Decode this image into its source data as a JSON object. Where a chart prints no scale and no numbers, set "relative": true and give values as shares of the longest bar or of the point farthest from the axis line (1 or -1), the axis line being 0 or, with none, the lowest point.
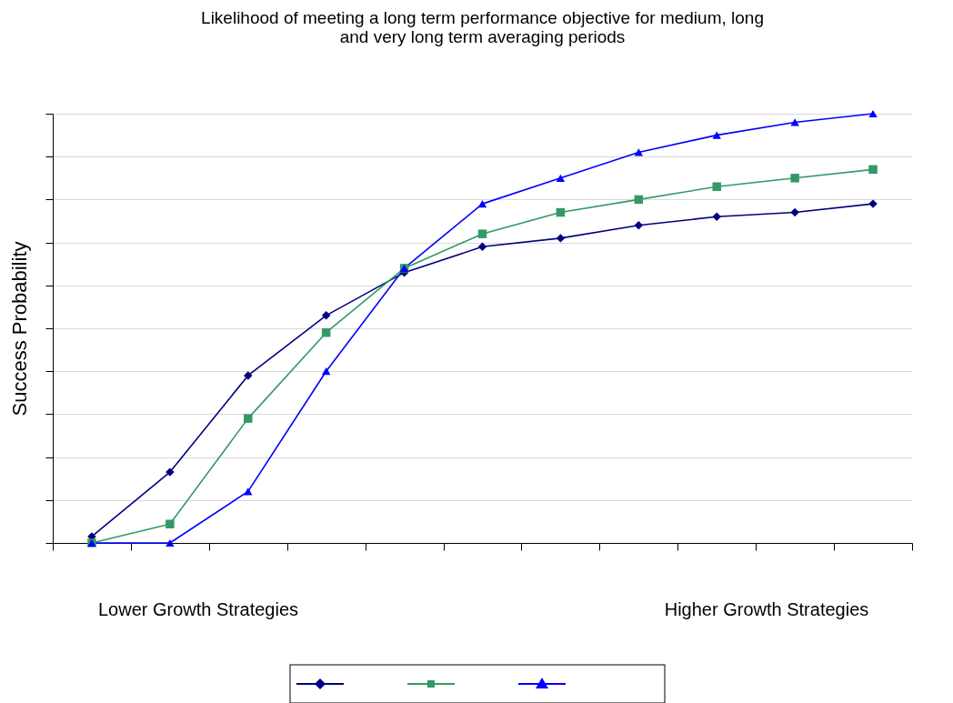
{
  "chart_data": {
    "type": "line",
    "title": "Likelihood of meeting a long term performance objective for medium, long and very long term averaging periods",
    "ylabel": "Success Probability",
    "relative": true,
    "grid": "y",
    "categories": [
      null,
      null,
      null,
      null,
      null,
      null,
      null,
      null,
      null,
      null,
      null
    ],
    "annotations": [
      "Lower Growth Strategies",
      "Higher Growth Strategies"
    ],
    "series": [
      {
        "color": "#000080",
        "marker": "diamond",
        "values": [
          0.015,
          0.165,
          0.39,
          0.53,
          0.63,
          0.69,
          0.71,
          0.74,
          0.76,
          0.77,
          0.79
        ]
      },
      {
        "color": "#339966",
        "marker": "square",
        "values": [
          0,
          0.044,
          0.29,
          0.49,
          0.64,
          0.72,
          0.77,
          0.8,
          0.83,
          0.85,
          0.87
        ]
      },
      {
        "color": "#0000ff",
        "marker": "triangle",
        "values": [
          0,
          0,
          0.12,
          0.4,
          0.64,
          0.79,
          0.85,
          0.91,
          0.95,
          0.98,
          1
        ]
      }
    ]
  }
}
